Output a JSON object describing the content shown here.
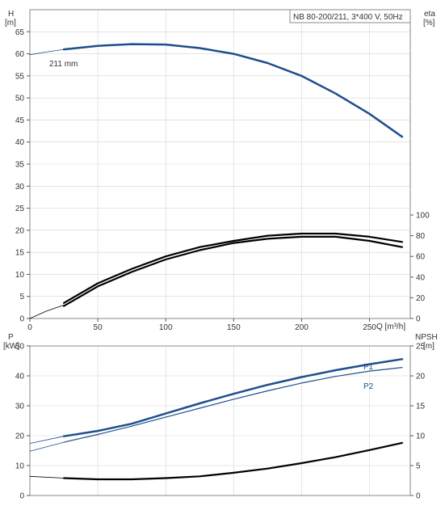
{
  "chart_data": [
    {
      "type": "line",
      "title": "NB 80-200/211, 3*400 V, 50Hz",
      "left_axis": {
        "label_line1": "H",
        "label_line2": "[m]",
        "ticks": [
          "0",
          "5",
          "10",
          "15",
          "20",
          "25",
          "30",
          "35",
          "40",
          "45",
          "50",
          "55",
          "60",
          "65"
        ],
        "ylim": [
          0,
          70
        ]
      },
      "right_axis": {
        "label_line1": "eta",
        "label_line2": "[%]",
        "ticks": [
          "0",
          "20",
          "40",
          "60",
          "80",
          "100"
        ],
        "ylim": [
          0,
          100
        ]
      },
      "x_axis": {
        "label": "Q [m³/h]",
        "ticks": [
          "0",
          "50",
          "100",
          "150",
          "200",
          "250"
        ],
        "xlim": [
          0,
          280
        ]
      },
      "grid": true,
      "annotation": "211 mm",
      "series": [
        {
          "name": "211 mm",
          "axis": "left",
          "color": "#1f4e8c",
          "width": 2.5,
          "x": [
            25,
            50,
            75,
            100,
            125,
            150,
            175,
            200,
            225,
            250,
            274
          ],
          "y": [
            61.0,
            61.8,
            62.2,
            62.1,
            61.3,
            60.0,
            57.9,
            55.0,
            51.0,
            46.4,
            41.2
          ]
        },
        {
          "axis": "left",
          "color": "#1f4e8c",
          "width": 0.8,
          "x": [
            0,
            12,
            25
          ],
          "y": [
            59.8,
            60.4,
            61.0
          ]
        },
        {
          "axis": "right",
          "color": "#000000",
          "width": 2.2,
          "x": [
            25,
            50,
            75,
            100,
            125,
            150,
            175,
            200,
            225,
            250,
            274
          ],
          "y": [
            12,
            31,
            45,
            57,
            66,
            73,
            77,
            79,
            79,
            75,
            69
          ]
        },
        {
          "axis": "right",
          "color": "#000000",
          "width": 2.2,
          "x": [
            25,
            50,
            75,
            100,
            125,
            150,
            175,
            200,
            225,
            250,
            274
          ],
          "y": [
            15,
            34,
            48,
            60,
            69,
            75,
            80,
            82,
            82,
            79,
            74
          ]
        },
        {
          "axis": "right",
          "color": "#000000",
          "width": 0.8,
          "x": [
            0,
            12,
            25
          ],
          "y": [
            0,
            7,
            13
          ]
        }
      ]
    },
    {
      "type": "line",
      "left_axis": {
        "label_line1": "P",
        "label_line2": "[kW]",
        "ticks": [
          "0",
          "10",
          "20",
          "30",
          "40",
          "50"
        ],
        "ylim": [
          0,
          50
        ]
      },
      "right_axis": {
        "label_line1": "NPSH",
        "label_line2": "[m]",
        "ticks": [
          "0",
          "5",
          "10",
          "15",
          "20",
          "25"
        ],
        "ylim": [
          0,
          25
        ]
      },
      "xlim": [
        0,
        280
      ],
      "grid": true,
      "series": [
        {
          "name": "P1",
          "axis": "left",
          "color": "#1f4e8c",
          "width": 2.5,
          "x": [
            25,
            50,
            75,
            100,
            125,
            150,
            175,
            200,
            225,
            250,
            274
          ],
          "y": [
            19.8,
            21.6,
            24.0,
            27.4,
            30.8,
            34.0,
            37.0,
            39.6,
            41.9,
            43.9,
            45.6
          ]
        },
        {
          "axis": "left",
          "color": "#1f4e8c",
          "width": 0.8,
          "x": [
            0,
            25
          ],
          "y": [
            17.4,
            19.8
          ]
        },
        {
          "name": "P2",
          "axis": "left",
          "color": "#1f4e8c",
          "width": 1.2,
          "x": [
            25,
            50,
            75,
            100,
            125,
            150,
            175,
            200,
            225,
            250,
            274
          ],
          "y": [
            17.8,
            20.4,
            23.2,
            26.2,
            29.2,
            32.2,
            35.0,
            37.6,
            39.8,
            41.6,
            42.8
          ]
        },
        {
          "axis": "left",
          "color": "#1f4e8c",
          "width": 0.8,
          "x": [
            0,
            25
          ],
          "y": [
            14.8,
            17.8
          ]
        },
        {
          "axis": "right",
          "color": "#000000",
          "width": 2.2,
          "x": [
            25,
            50,
            75,
            100,
            125,
            150,
            175,
            200,
            225,
            250,
            274
          ],
          "y": [
            2.9,
            2.7,
            2.7,
            2.9,
            3.2,
            3.8,
            4.5,
            5.4,
            6.4,
            7.6,
            8.8
          ]
        },
        {
          "axis": "right",
          "color": "#000000",
          "width": 0.8,
          "x": [
            0,
            25
          ],
          "y": [
            3.2,
            2.9
          ]
        }
      ],
      "series_labels": [
        "P1",
        "P2"
      ]
    }
  ]
}
